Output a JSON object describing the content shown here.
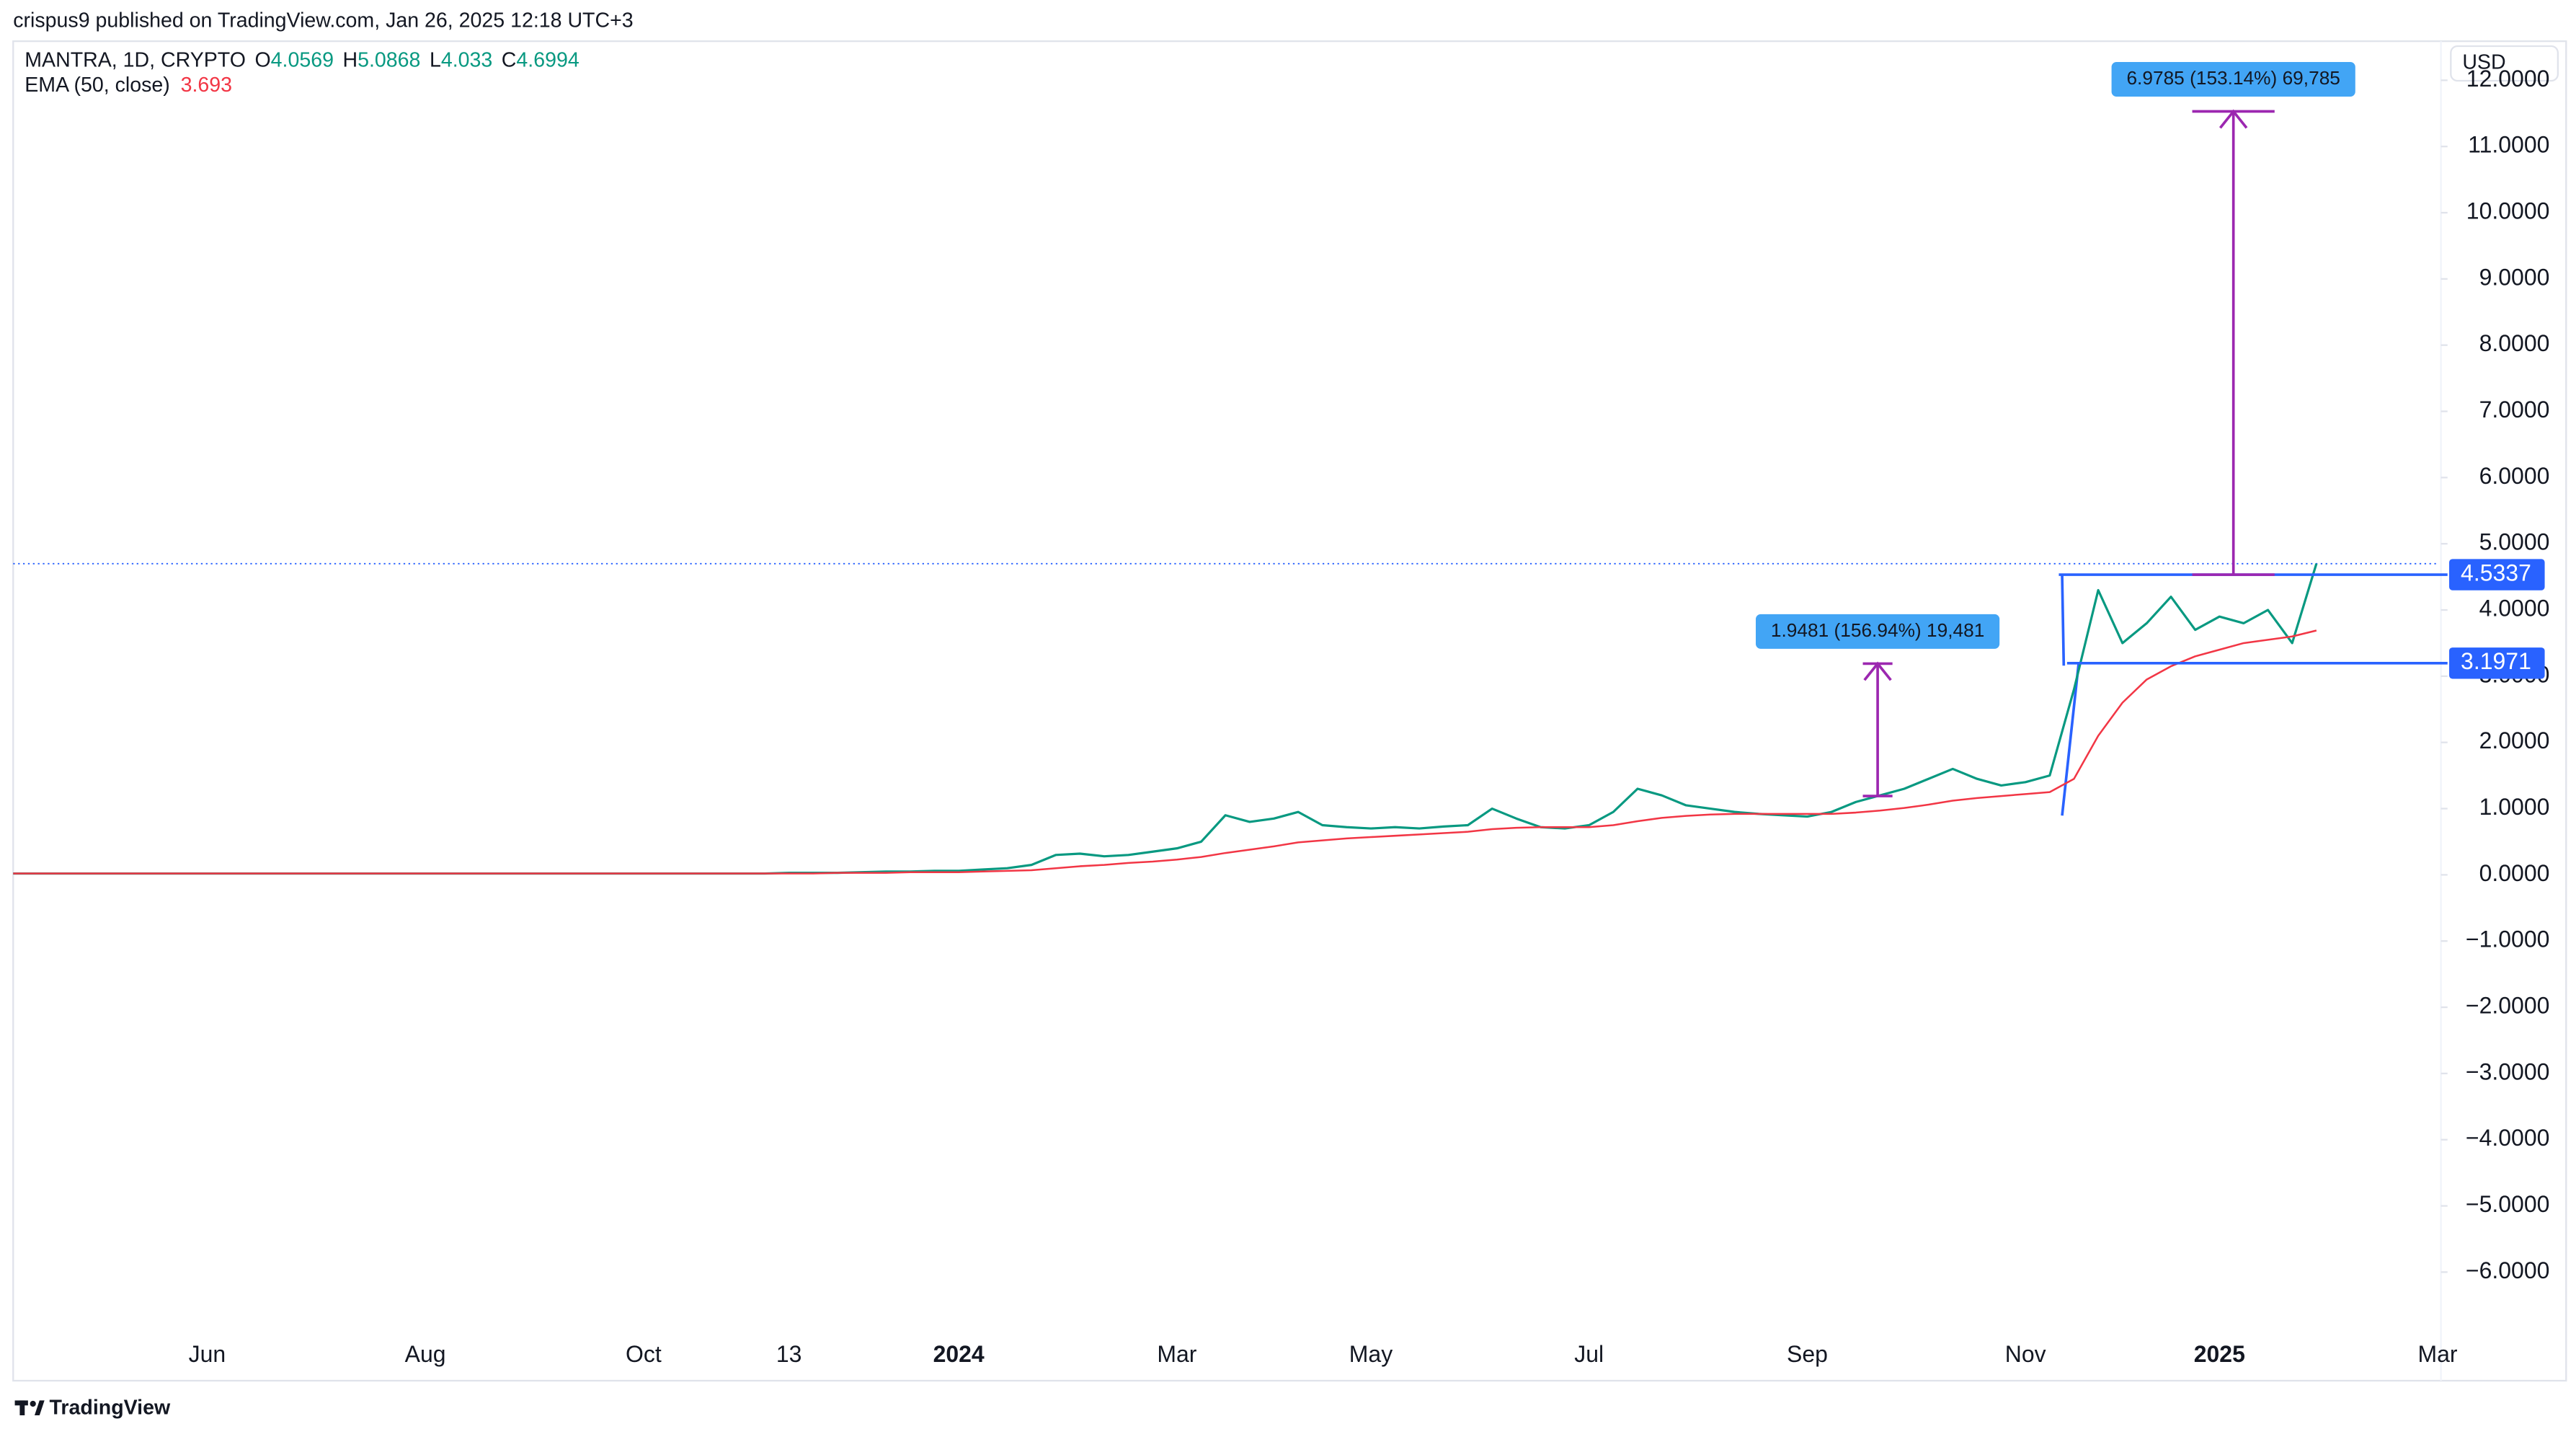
{
  "header": {
    "published": "crispus9 published on TradingView.com, Jan 26, 2025 12:18 UTC+3",
    "symbol": "MANTRA, 1D, CRYPTO",
    "ohlc": [
      {
        "key": "O",
        "value": 4.0569
      },
      {
        "key": "H",
        "value": 5.0868
      },
      {
        "key": "L",
        "value": 4.033
      },
      {
        "key": "C",
        "value": 4.6994
      }
    ],
    "indicator": {
      "name": "EMA (50, close)",
      "value": 3.693
    },
    "currency": "USD"
  },
  "chart_data": {
    "type": "line",
    "categories": [
      null,
      null,
      null,
      null,
      null,
      null,
      null,
      null,
      "Jun",
      null,
      null,
      null,
      null,
      null,
      null,
      null,
      null,
      "Aug",
      null,
      null,
      null,
      null,
      null,
      null,
      null,
      null,
      "Oct",
      null,
      null,
      null,
      null,
      null,
      "13",
      null,
      null,
      null,
      null,
      null,
      null,
      "2024",
      null,
      null,
      null,
      null,
      null,
      null,
      null,
      null,
      "Mar",
      null,
      null,
      null,
      null,
      null,
      null,
      null,
      "May",
      null,
      null,
      null,
      null,
      null,
      null,
      null,
      null,
      "Jul",
      null,
      null,
      null,
      null,
      null,
      null,
      null,
      null,
      "Sep",
      null,
      null,
      null,
      null,
      null,
      null,
      null,
      null,
      "Nov",
      null,
      null,
      null,
      null,
      null,
      null,
      null,
      "2025",
      null,
      null,
      null,
      null,
      null,
      null,
      null,
      null,
      "Mar"
    ],
    "series": [
      {
        "name": "MANTRA",
        "color": "#089981",
        "values": [
          0.02,
          0.02,
          0.02,
          0.02,
          0.02,
          0.02,
          0.02,
          0.02,
          0.02,
          0.02,
          0.02,
          0.02,
          0.02,
          0.02,
          0.02,
          0.02,
          0.02,
          0.02,
          0.02,
          0.02,
          0.02,
          0.02,
          0.02,
          0.02,
          0.02,
          0.02,
          0.02,
          0.02,
          0.02,
          0.02,
          0.02,
          0.02,
          0.03,
          0.03,
          0.03,
          0.04,
          0.05,
          0.05,
          0.06,
          0.06,
          0.08,
          0.1,
          0.15,
          0.3,
          0.32,
          0.28,
          0.3,
          0.35,
          0.4,
          0.5,
          0.9,
          0.8,
          0.85,
          0.95,
          0.75,
          0.72,
          0.7,
          0.72,
          0.7,
          0.73,
          0.75,
          1.0,
          0.85,
          0.72,
          0.7,
          0.75,
          0.95,
          1.3,
          1.2,
          1.05,
          1.0,
          0.95,
          0.92,
          0.9,
          0.88,
          0.95,
          1.1,
          1.2,
          1.3,
          1.45,
          1.6,
          1.45,
          1.35,
          1.4,
          1.5,
          2.8,
          4.3,
          3.5,
          3.8,
          4.2,
          3.7,
          3.9,
          3.8,
          4.0,
          3.5,
          4.7,
          null,
          null,
          null,
          null,
          null
        ]
      },
      {
        "name": "EMA (50, close)",
        "color": "#f23645",
        "values": [
          0.02,
          0.02,
          0.02,
          0.02,
          0.02,
          0.02,
          0.02,
          0.02,
          0.02,
          0.02,
          0.02,
          0.02,
          0.02,
          0.02,
          0.02,
          0.02,
          0.02,
          0.02,
          0.02,
          0.02,
          0.02,
          0.02,
          0.02,
          0.02,
          0.02,
          0.02,
          0.02,
          0.02,
          0.02,
          0.02,
          0.02,
          0.02,
          0.02,
          0.02,
          0.03,
          0.03,
          0.03,
          0.04,
          0.04,
          0.04,
          0.05,
          0.06,
          0.07,
          0.1,
          0.13,
          0.15,
          0.18,
          0.2,
          0.23,
          0.27,
          0.33,
          0.38,
          0.43,
          0.49,
          0.52,
          0.55,
          0.57,
          0.59,
          0.61,
          0.63,
          0.65,
          0.69,
          0.71,
          0.72,
          0.72,
          0.72,
          0.75,
          0.81,
          0.86,
          0.89,
          0.91,
          0.92,
          0.92,
          0.92,
          0.92,
          0.92,
          0.94,
          0.97,
          1.01,
          1.06,
          1.12,
          1.16,
          1.19,
          1.22,
          1.25,
          1.45,
          2.1,
          2.6,
          2.95,
          3.15,
          3.3,
          3.4,
          3.5,
          3.55,
          3.6,
          3.69,
          null,
          null,
          null,
          null,
          null
        ]
      }
    ],
    "ylim": [
      -7.64,
      12.59
    ],
    "yticks": [
      {
        "value": -6,
        "label": "−6.0000"
      },
      {
        "value": -5,
        "label": "−5.0000"
      },
      {
        "value": -4,
        "label": "−4.0000"
      },
      {
        "value": -3,
        "label": "−3.0000"
      },
      {
        "value": -2,
        "label": "−2.0000"
      },
      {
        "value": -1,
        "label": "−1.0000"
      },
      {
        "value": 0,
        "label": "0.0000"
      },
      {
        "value": 1,
        "label": "1.0000"
      },
      {
        "value": 2,
        "label": "2.0000"
      },
      {
        "value": 3,
        "label": "3.0000"
      },
      {
        "value": 4,
        "label": "4.0000"
      },
      {
        "value": 5,
        "label": "5.0000"
      },
      {
        "value": 6,
        "label": "6.0000"
      },
      {
        "value": 7,
        "label": "7.0000"
      },
      {
        "value": 8,
        "label": "8.0000"
      },
      {
        "value": 9,
        "label": "9.0000"
      },
      {
        "value": 10,
        "label": "10.0000"
      },
      {
        "value": 11,
        "label": "11.0000"
      },
      {
        "value": 12,
        "label": "12.0000"
      }
    ],
    "grid": false,
    "price_lines": [
      4.5337,
      3.1971
    ],
    "measurements": [
      {
        "text": "1.9481 (156.94%) 19,481",
        "from": 1.19,
        "to": 3.19
      },
      {
        "text": "6.9785 (153.14%) 69,785",
        "from": 4.5337,
        "to": 11.53
      }
    ]
  },
  "footer": {
    "brand": "TradingView"
  }
}
